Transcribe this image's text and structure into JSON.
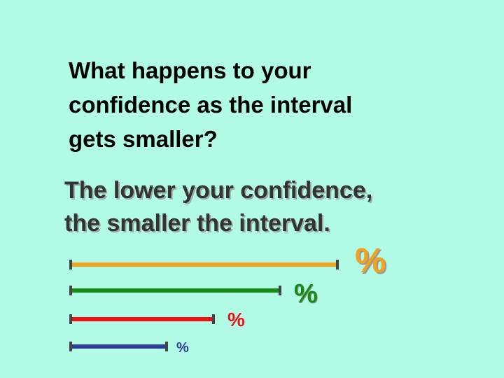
{
  "question": {
    "lines": [
      "What happens to your",
      "confidence as the interval",
      "gets smaller?"
    ]
  },
  "answer": {
    "lines": [
      "The lower your confidence,",
      "the smaller the interval."
    ]
  },
  "intervals": [
    {
      "label": "%"
    },
    {
      "label": "%"
    },
    {
      "label": "%"
    },
    {
      "label": "%"
    }
  ]
}
